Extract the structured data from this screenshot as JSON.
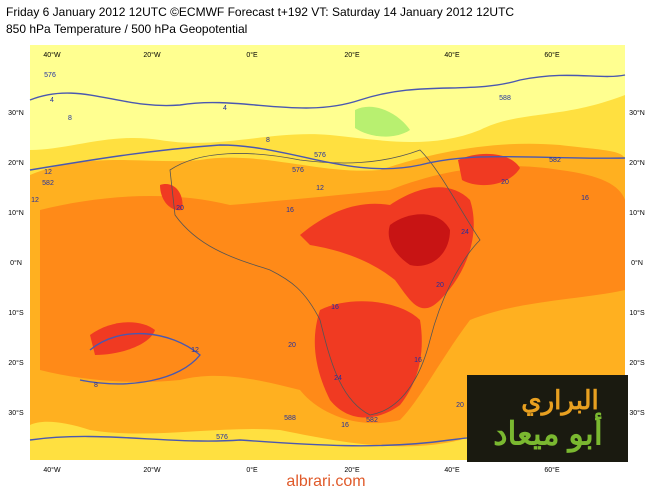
{
  "header": {
    "line1": "Friday 6 January 2012 12UTC ©ECMWF Forecast t+192 VT: Saturday 14 January 2012 12UTC",
    "line2": "850 hPa Temperature / 500 hPa Geopotential"
  },
  "map": {
    "lon_labels": [
      "40°W",
      "20°W",
      "0°E",
      "20°E",
      "40°E",
      "60°E"
    ],
    "lat_labels": [
      "30°N",
      "20°N",
      "10°N",
      "0°N",
      "10°S",
      "20°S",
      "30°S"
    ],
    "contour_labels": [
      "576",
      "4",
      "8",
      "4",
      "576",
      "8",
      "582",
      "12",
      "576",
      "582",
      "12",
      "16",
      "20",
      "16",
      "588",
      "20",
      "24",
      "20",
      "16",
      "12",
      "20",
      "24",
      "16",
      "8",
      "588",
      "582",
      "576",
      "16",
      "20",
      "12"
    ]
  },
  "watermark": {
    "brand_ar": "البراري",
    "name_ar": "أبو ميعاد",
    "site": "albrari.com"
  }
}
